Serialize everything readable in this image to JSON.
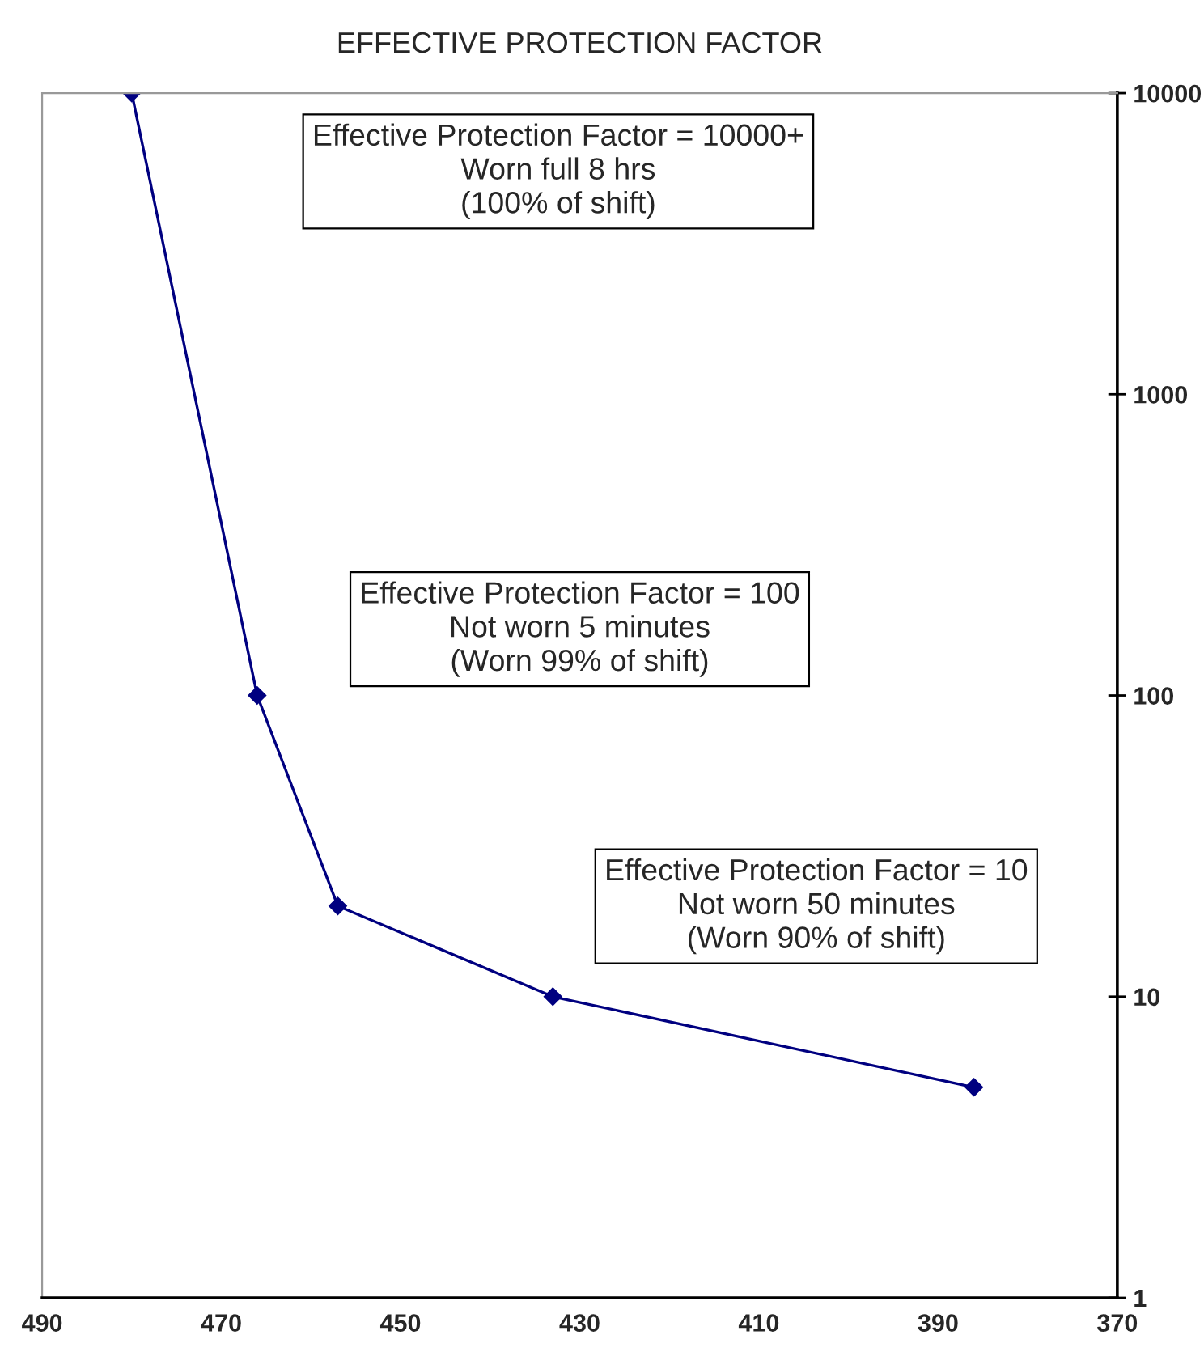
{
  "chart_data": {
    "type": "line",
    "title": "EFFECTIVE PROTECTION FACTOR",
    "x": [
      480,
      466,
      457,
      433,
      386
    ],
    "series": [
      {
        "color": "#000080",
        "values": [
          10000,
          100,
          20,
          10,
          5
        ]
      }
    ],
    "marker": "diamond",
    "line_style": "solid",
    "log": "y",
    "xlim": [
      490,
      370
    ],
    "xticks": [
      490,
      470,
      450,
      430,
      410,
      390,
      370
    ],
    "ylim": [
      1,
      10000
    ],
    "yticks": [
      1,
      10,
      100,
      1000,
      10000
    ],
    "annotations": [
      "Effective Protection Factor = 10000+\nWorn full 8 hrs\n(100% of shift)",
      "Effective Protection Factor = 100\nNot worn 5 minutes\n(Worn 99% of shift)",
      "Effective Protection Factor = 10\nNot worn 50 minutes\n(Worn 90% of shift)"
    ]
  }
}
